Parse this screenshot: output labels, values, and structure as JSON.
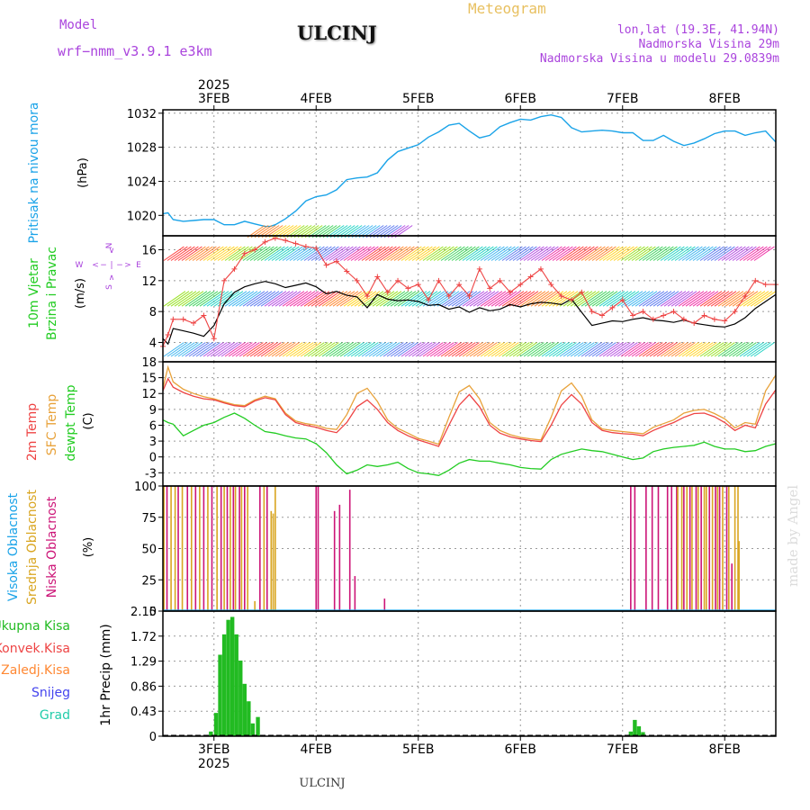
{
  "header": {
    "model_label": "Model",
    "model_name": "wrf−nmm_v3.9.1  e3km",
    "station": "ULCINJ",
    "product": "Meteogram",
    "lonlat": "lon,lat (19.3E, 41.94N)",
    "elevation": "Nadmorska Visina 29m",
    "model_elevation": "Nadmorska Visina u modelu 29.0839m"
  },
  "footer": {
    "station": "ULCINJ",
    "credit": "made by Angel"
  },
  "colors": {
    "pressure": "#1aa3e8",
    "wind_speed": "#000000",
    "gust": "#ee4444",
    "temp2m": "#ee4444",
    "sfc_temp": "#e8a23a",
    "dewpoint": "#22cc22",
    "high_cloud": "#1aa3e8",
    "mid_cloud": "#d9a520",
    "low_cloud": "#cc1477",
    "precip_total": "#22bb22",
    "precip_conv": "#ee4444",
    "precip_ice": "#ff8833",
    "snow": "#4444ee",
    "graupel": "#22ccaa",
    "compass": "#aa44dd",
    "header_purple": "#aa44dd",
    "meteogram": "#e8c060"
  },
  "chart_data": [
    {
      "type": "line",
      "name": "pressure",
      "ylabel": "Pritisak na nivou mora",
      "units": "(hPa)",
      "yticks": [
        1020,
        1024,
        1028,
        1032
      ],
      "ylim": [
        1017.6,
        1032.4
      ],
      "x_days": [
        2.5,
        2.55,
        2.6,
        2.7,
        2.8,
        2.9,
        3.0,
        3.05,
        3.1,
        3.2,
        3.3,
        3.4,
        3.5,
        3.55,
        3.6,
        3.7,
        3.8,
        3.9,
        4.0,
        4.1,
        4.2,
        4.3,
        4.4,
        4.5,
        4.6,
        4.7,
        4.8,
        4.9,
        5.0,
        5.1,
        5.2,
        5.3,
        5.4,
        5.5,
        5.6,
        5.7,
        5.8,
        5.9,
        6.0,
        6.1,
        6.2,
        6.3,
        6.4,
        6.5,
        6.6,
        6.7,
        6.8,
        6.9,
        7.0,
        7.1,
        7.2,
        7.3,
        7.4,
        7.5,
        7.6,
        7.7,
        7.8,
        7.9,
        8.0,
        8.1,
        8.2,
        8.3,
        8.4,
        8.5
      ],
      "values": [
        1020.2,
        1020.3,
        1019.5,
        1019.3,
        1019.4,
        1019.5,
        1019.5,
        1019.2,
        1018.9,
        1018.9,
        1019.3,
        1019.0,
        1018.7,
        1018.7,
        1018.9,
        1019.6,
        1020.5,
        1021.7,
        1022.2,
        1022.4,
        1023.0,
        1024.2,
        1024.4,
        1024.5,
        1025.0,
        1026.5,
        1027.5,
        1027.9,
        1028.3,
        1029.2,
        1029.8,
        1030.6,
        1030.8,
        1029.9,
        1029.1,
        1029.4,
        1030.4,
        1030.9,
        1031.3,
        1031.2,
        1031.6,
        1031.8,
        1031.5,
        1030.3,
        1029.8,
        1029.9,
        1030.0,
        1029.9,
        1029.7,
        1029.7,
        1028.8,
        1028.8,
        1029.4,
        1028.7,
        1028.2,
        1028.5,
        1029.0,
        1029.6,
        1029.9,
        1029.9,
        1029.4,
        1029.7,
        1029.9,
        1028.6
      ]
    },
    {
      "type": "line",
      "name": "wind",
      "ylabel": "10m Vjetar Brzina i Pravac",
      "units": "(m/s)",
      "yticks": [
        4,
        8,
        12,
        16
      ],
      "ylim": [
        1.5,
        17.8
      ],
      "compass": {
        "n": "N",
        "s": "S",
        "w": "W",
        "e": "E",
        "arrow_n": "∨",
        "arrow_s": "∧",
        "dash": "−",
        "lt": "<",
        "gt": ">",
        "bar": "|"
      },
      "x_days": [
        2.5,
        2.55,
        2.6,
        2.7,
        2.8,
        2.9,
        3.0,
        3.1,
        3.2,
        3.3,
        3.4,
        3.5,
        3.6,
        3.7,
        3.8,
        3.9,
        4.0,
        4.1,
        4.2,
        4.3,
        4.4,
        4.5,
        4.6,
        4.7,
        4.8,
        4.9,
        5.0,
        5.1,
        5.2,
        5.3,
        5.4,
        5.5,
        5.6,
        5.7,
        5.8,
        5.9,
        6.0,
        6.1,
        6.2,
        6.3,
        6.4,
        6.5,
        6.6,
        6.7,
        6.8,
        6.9,
        7.0,
        7.1,
        7.2,
        7.3,
        7.4,
        7.5,
        7.6,
        7.7,
        7.8,
        7.9,
        8.0,
        8.1,
        8.2,
        8.3,
        8.4,
        8.5
      ],
      "speed": [
        4.5,
        3.8,
        5.8,
        5.5,
        5.2,
        4.8,
        6.2,
        9.0,
        10.5,
        11.2,
        11.6,
        11.9,
        11.6,
        11.1,
        11.4,
        11.7,
        11.2,
        10.3,
        10.6,
        10.1,
        9.9,
        8.5,
        10.2,
        9.6,
        9.4,
        9.5,
        9.3,
        8.8,
        8.9,
        8.3,
        8.6,
        7.9,
        8.5,
        8.1,
        8.3,
        8.9,
        8.6,
        9.0,
        9.2,
        9.1,
        8.9,
        9.6,
        7.9,
        6.2,
        6.5,
        6.8,
        6.7,
        7.0,
        7.2,
        6.9,
        6.8,
        6.6,
        6.9,
        6.5,
        6.3,
        6.1,
        6.0,
        6.4,
        7.2,
        8.4,
        9.3,
        10.2
      ],
      "gust": [
        3.5,
        5.0,
        7.0,
        7.0,
        6.5,
        7.5,
        4.5,
        12.0,
        13.5,
        15.5,
        16.0,
        17.0,
        17.5,
        17.2,
        16.8,
        16.4,
        16.2,
        14.0,
        14.5,
        13.2,
        12.0,
        10.0,
        12.5,
        10.5,
        12.0,
        11.0,
        11.5,
        9.5,
        12.0,
        10.0,
        11.5,
        10.0,
        13.5,
        11.0,
        12.0,
        10.5,
        11.5,
        12.5,
        13.5,
        11.5,
        10.0,
        9.5,
        10.5,
        8.0,
        7.5,
        8.5,
        9.5,
        7.5,
        8.0,
        7.0,
        7.5,
        8.0,
        7.0,
        6.5,
        7.5,
        7.0,
        6.8,
        8.0,
        10.0,
        12.0,
        11.5,
        11.5
      ]
    },
    {
      "type": "line",
      "name": "temperature",
      "ylabels": [
        "2m Temp",
        "SFC Temp",
        "dewpt Temp"
      ],
      "units": "(C)",
      "yticks": [
        -3,
        0,
        3,
        6,
        9,
        12,
        15,
        18
      ],
      "ylim": [
        -5.5,
        18
      ],
      "x_days": [
        2.5,
        2.55,
        2.6,
        2.7,
        2.8,
        2.9,
        3.0,
        3.1,
        3.2,
        3.3,
        3.4,
        3.5,
        3.6,
        3.7,
        3.8,
        3.9,
        4.0,
        4.1,
        4.2,
        4.3,
        4.4,
        4.5,
        4.6,
        4.7,
        4.8,
        4.9,
        5.0,
        5.1,
        5.2,
        5.3,
        5.4,
        5.5,
        5.6,
        5.7,
        5.8,
        5.9,
        6.0,
        6.1,
        6.2,
        6.3,
        6.4,
        6.5,
        6.6,
        6.7,
        6.8,
        6.9,
        7.0,
        7.1,
        7.2,
        7.3,
        7.4,
        7.5,
        7.6,
        7.7,
        7.8,
        7.9,
        8.0,
        8.1,
        8.2,
        8.3,
        8.4,
        8.5
      ],
      "temp2m": [
        12.5,
        14.8,
        13.2,
        12.2,
        11.5,
        11.0,
        10.8,
        10.2,
        9.7,
        9.5,
        10.6,
        11.2,
        10.8,
        8.0,
        6.5,
        6.0,
        5.6,
        5.0,
        4.6,
        6.5,
        9.5,
        10.8,
        9.0,
        6.5,
        5.0,
        4.0,
        3.2,
        2.6,
        2.0,
        6.0,
        9.8,
        11.8,
        9.5,
        6.0,
        4.5,
        3.8,
        3.4,
        3.1,
        2.9,
        6.0,
        9.8,
        11.8,
        10.0,
        6.5,
        5.0,
        4.6,
        4.4,
        4.3,
        4.0,
        5.0,
        5.8,
        6.5,
        7.5,
        8.2,
        8.3,
        7.6,
        6.5,
        5.0,
        6.0,
        5.5,
        10.0,
        12.7
      ],
      "sfc": [
        13.0,
        17.0,
        14.2,
        12.8,
        12.0,
        11.4,
        11.0,
        10.4,
        9.9,
        9.7,
        10.8,
        11.5,
        11.0,
        8.3,
        6.8,
        6.3,
        6.0,
        5.4,
        5.2,
        8.0,
        12.0,
        13.0,
        10.5,
        7.0,
        5.4,
        4.5,
        3.5,
        3.0,
        2.4,
        7.5,
        12.3,
        13.5,
        11.0,
        6.5,
        5.0,
        4.2,
        3.7,
        3.4,
        3.2,
        7.5,
        12.5,
        14.0,
        11.5,
        7.0,
        5.3,
        5.0,
        4.8,
        4.6,
        4.4,
        5.6,
        6.3,
        7.0,
        8.3,
        8.8,
        9.0,
        8.2,
        7.2,
        5.5,
        6.5,
        6.2,
        12.5,
        15.5
      ],
      "dewpoint": [
        7.0,
        6.5,
        6.2,
        4.0,
        5.0,
        6.0,
        6.5,
        7.5,
        8.3,
        7.3,
        6.0,
        4.8,
        4.5,
        4.0,
        3.6,
        3.4,
        2.5,
        0.8,
        -1.5,
        -3.2,
        -2.5,
        -1.5,
        -1.8,
        -1.5,
        -1.0,
        -2.2,
        -3.0,
        -3.2,
        -3.5,
        -2.5,
        -1.2,
        -0.5,
        -0.8,
        -0.8,
        -1.2,
        -1.5,
        -2.0,
        -2.2,
        -2.3,
        -0.5,
        0.5,
        1.0,
        1.5,
        1.2,
        1.0,
        0.5,
        0.0,
        -0.5,
        -0.2,
        1.0,
        1.5,
        1.8,
        2.0,
        2.2,
        2.8,
        2.0,
        1.5,
        1.5,
        1.0,
        1.2,
        2.0,
        2.5
      ]
    },
    {
      "type": "bar",
      "name": "cloud",
      "ylabels": [
        "Visoka Oblacnost",
        "Srednja Oblacnost",
        "Niska Oblacnost"
      ],
      "units": "(%)",
      "yticks": [
        0,
        25,
        50,
        75,
        100
      ],
      "ylim": [
        0,
        100
      ],
      "low": {
        "x_days": [
          2.54,
          2.65,
          2.74,
          2.82,
          2.9,
          2.98,
          3.07,
          3.13,
          3.19,
          3.25,
          3.3,
          3.45,
          3.52,
          4.0,
          4.02,
          4.18,
          4.23,
          4.33,
          4.38,
          4.67,
          7.08,
          7.12,
          7.23,
          7.29,
          7.35,
          7.44,
          7.48,
          7.53,
          7.6,
          7.66,
          7.72,
          7.77,
          7.85,
          7.91,
          7.95,
          8.02,
          8.07
        ],
        "values": [
          100,
          100,
          100,
          100,
          100,
          100,
          100,
          100,
          100,
          100,
          100,
          100,
          100,
          100,
          100,
          80,
          85,
          97,
          28,
          10,
          100,
          100,
          100,
          100,
          100,
          100,
          100,
          100,
          100,
          100,
          100,
          100,
          100,
          100,
          100,
          100,
          38
        ]
      },
      "mid": {
        "x_days": [
          2.51,
          2.58,
          2.62,
          2.69,
          2.78,
          2.86,
          2.94,
          3.03,
          3.1,
          3.16,
          3.21,
          3.27,
          3.33,
          3.4,
          3.49,
          3.56,
          3.58,
          3.6,
          7.54,
          7.58,
          7.63,
          7.68,
          7.74,
          7.8,
          7.82,
          7.88,
          7.93,
          7.98,
          8.04,
          8.1,
          8.13,
          8.14
        ],
        "values": [
          100,
          100,
          100,
          100,
          100,
          100,
          100,
          100,
          100,
          100,
          100,
          100,
          100,
          8,
          100,
          80,
          78,
          100,
          100,
          100,
          100,
          100,
          100,
          100,
          100,
          100,
          100,
          100,
          100,
          100,
          100,
          56
        ]
      },
      "high": {
        "x_days": [],
        "values": []
      }
    },
    {
      "type": "bar",
      "name": "precip",
      "ylabel": "1hr Precip (mm)",
      "legend": [
        "Ukupna Kisa",
        "Konvek.Kisa",
        "Zaledj.Kisa",
        "Snijeg",
        "Grad"
      ],
      "yticks": [
        0,
        0.43,
        0.86,
        1.29,
        1.72,
        2.15
      ],
      "ylim": [
        0,
        2.15
      ],
      "x_days": [
        2.97,
        3.02,
        3.06,
        3.1,
        3.14,
        3.18,
        3.22,
        3.26,
        3.3,
        3.34,
        3.38,
        3.43,
        7.08,
        7.12,
        7.16,
        7.2
      ],
      "values": [
        0.08,
        0.4,
        1.4,
        1.75,
        2.0,
        2.05,
        1.75,
        1.3,
        0.9,
        0.6,
        0.22,
        0.33,
        0.08,
        0.28,
        0.17,
        0.07
      ]
    }
  ],
  "time_axis": {
    "year": "2025",
    "day_positions": [
      3,
      4,
      5,
      6,
      7,
      8
    ],
    "day_labels": [
      "3FEB",
      "4FEB",
      "5FEB",
      "6FEB",
      "7FEB",
      "8FEB"
    ],
    "x_range": [
      2.5,
      8.5
    ]
  }
}
